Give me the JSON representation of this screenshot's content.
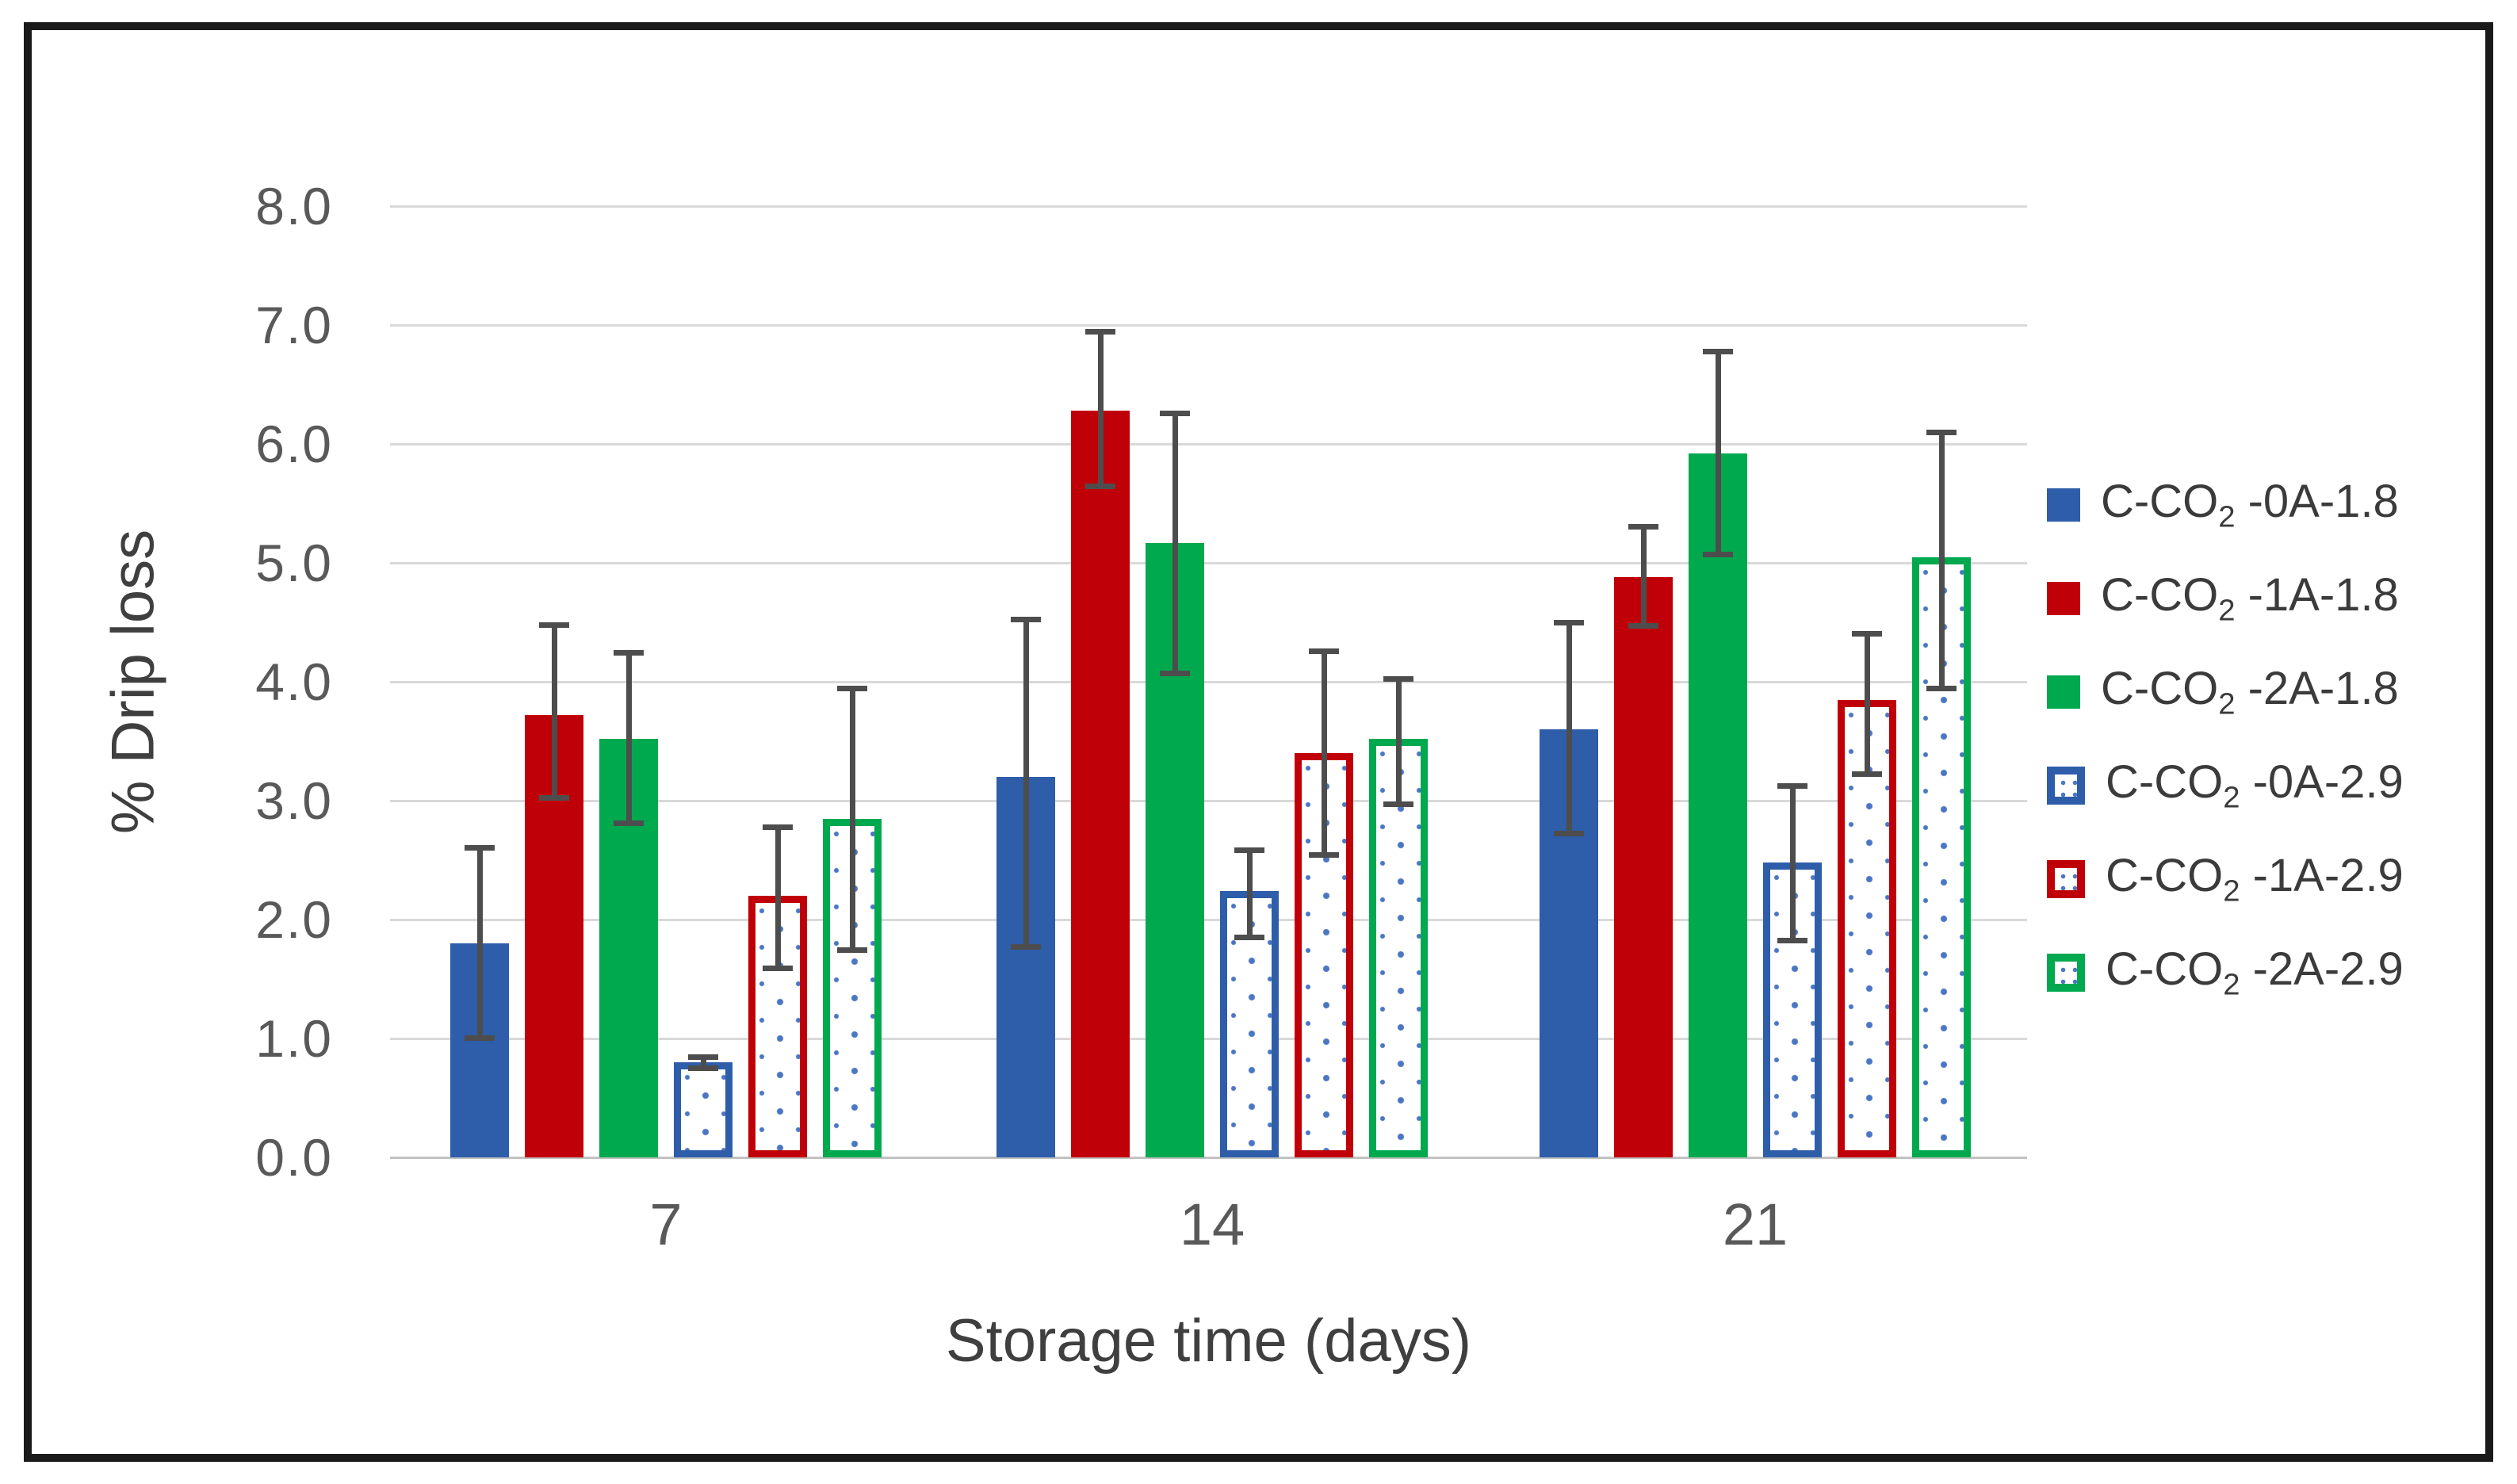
{
  "figure": {
    "background": "#ffffff",
    "frame_border_color": "#1a1a1a"
  },
  "chart_data": {
    "type": "bar",
    "title": "",
    "xlabel": "Storage time (days)",
    "ylabel": "% Drip loss",
    "ylim": [
      0,
      8
    ],
    "ytick_step": 1.0,
    "yticks": [
      "8.0",
      "7.0",
      "6.0",
      "5.0",
      "4.0",
      "3.0",
      "2.0",
      "1.0",
      "0.0"
    ],
    "grid": true,
    "legend_position": "right",
    "error_bars": true,
    "categories": [
      "7",
      "14",
      "21"
    ],
    "series": [
      {
        "name": "C-CO2-0A-1.8",
        "label": {
          "pre": "C-CO",
          "sub": "2",
          "post": " -0A-1.8"
        },
        "style": "solid",
        "color": "#2e5da9",
        "values": [
          1.8,
          3.2,
          3.6
        ],
        "err_low": [
          0.98,
          1.75,
          2.7
        ],
        "err_high": [
          2.63,
          4.55,
          4.52
        ]
      },
      {
        "name": "C-CO2-1A-1.8",
        "label": {
          "pre": "C-CO",
          "sub": "2",
          "post": " -1A-1.8"
        },
        "style": "solid",
        "color": "#c00008",
        "values": [
          3.72,
          6.28,
          4.88
        ],
        "err_low": [
          3.0,
          5.62,
          4.45
        ],
        "err_high": [
          4.5,
          6.97,
          5.33
        ]
      },
      {
        "name": "C-CO2-2A-1.8",
        "label": {
          "pre": "C-CO",
          "sub": "2",
          "post": " -2A-1.8"
        },
        "style": "solid",
        "color": "#00a84e",
        "values": [
          3.52,
          5.17,
          5.92
        ],
        "err_low": [
          2.79,
          4.05,
          5.05
        ],
        "err_high": [
          4.27,
          6.28,
          6.8
        ]
      },
      {
        "name": "C-CO2-0A-2.9",
        "label": {
          "pre": "C-CO",
          "sub": "2",
          "post": " -0A-2.9"
        },
        "style": "dotted",
        "color": "#2e5da9",
        "values": [
          0.8,
          2.24,
          2.48
        ],
        "err_low": [
          0.73,
          1.83,
          1.8
        ],
        "err_high": [
          0.87,
          2.61,
          3.15
        ]
      },
      {
        "name": "C-CO2-1A-2.9",
        "label": {
          "pre": "C-CO",
          "sub": "2",
          "post": " -1A-2.9"
        },
        "style": "dotted",
        "color": "#c00008",
        "values": [
          2.2,
          3.4,
          3.85
        ],
        "err_low": [
          1.57,
          2.52,
          3.2
        ],
        "err_high": [
          2.8,
          4.28,
          4.43
        ]
      },
      {
        "name": "C-CO2-2A-2.9",
        "label": {
          "pre": "C-CO",
          "sub": "2",
          "post": " -2A-2.9"
        },
        "style": "dotted",
        "color": "#00a84e",
        "values": [
          2.85,
          3.52,
          5.05
        ],
        "err_low": [
          1.72,
          2.95,
          3.92
        ],
        "err_high": [
          3.97,
          4.05,
          6.12
        ]
      }
    ],
    "colors": {
      "gridline": "#d9d9d9",
      "axis_line": "#c2c2c2",
      "error_bar": "#4d4d4d",
      "tick_text": "#595959",
      "title_text": "#3f3f3f",
      "dot_pattern": "#4a76c4"
    }
  }
}
